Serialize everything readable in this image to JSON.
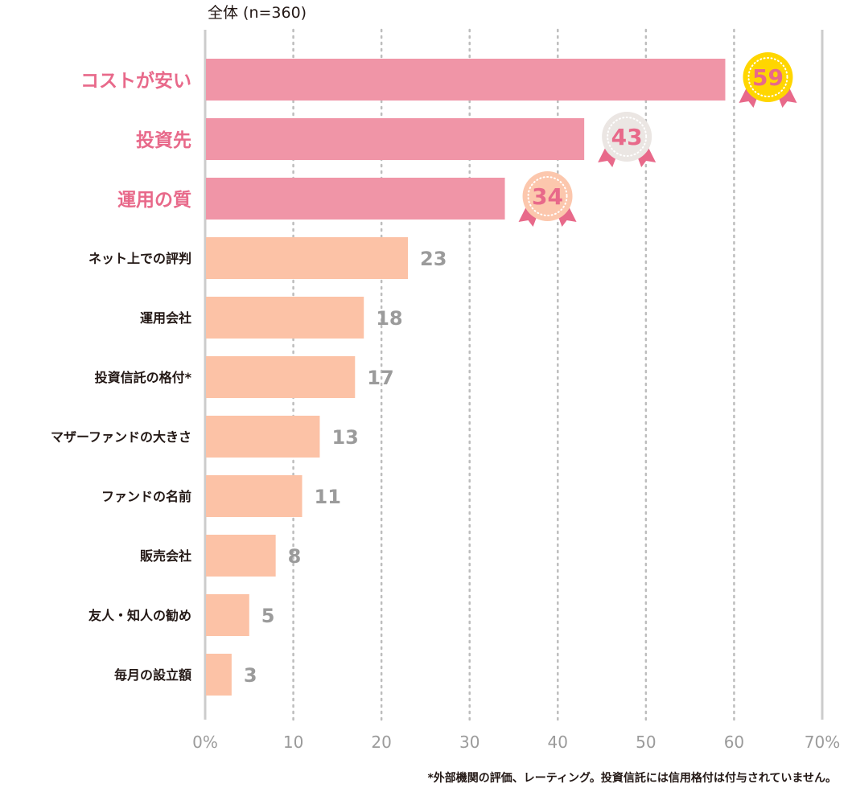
{
  "chart_data": {
    "type": "bar",
    "orientation": "horizontal",
    "subtitle": "全体 (n=360)",
    "categories": [
      "コストが安い",
      "投資先",
      "運用の質",
      "ネット上での評判",
      "運用会社",
      "投資信託の格付*",
      "マザーファンドの大きさ",
      "ファンドの名前",
      "販売会社",
      "友人・知人の勧め",
      "毎月の設立額"
    ],
    "values": [
      59,
      43,
      34,
      23,
      18,
      17,
      13,
      11,
      8,
      5,
      3
    ],
    "unit": "%",
    "xlim": [
      0,
      70
    ],
    "xticks": [
      0,
      10,
      20,
      30,
      40,
      50,
      60,
      70
    ],
    "xtick_labels": [
      "0%",
      "10",
      "20",
      "30",
      "40",
      "50",
      "60",
      "70%"
    ],
    "grid": "vertical-dotted",
    "highlight_top": 3,
    "badges": [
      {
        "rank": 1,
        "value": 59,
        "color": "#ffd600"
      },
      {
        "rank": 2,
        "value": 43,
        "color": "#ebe6e3"
      },
      {
        "rank": 3,
        "value": 34,
        "color": "#fcc7ad"
      }
    ],
    "footnote": "*外部機関の評価、レーティング。投資信託には信用格付は付与されていません。"
  },
  "colors": {
    "top_bar": "#f095a7",
    "other_bar": "#fcc2a6",
    "top_label": "#e8698a",
    "label": "#231815",
    "value": "#9b9b9b",
    "ribbon": "#e8698a",
    "axis": "#cccccc",
    "grid": "#bdbdbd"
  }
}
